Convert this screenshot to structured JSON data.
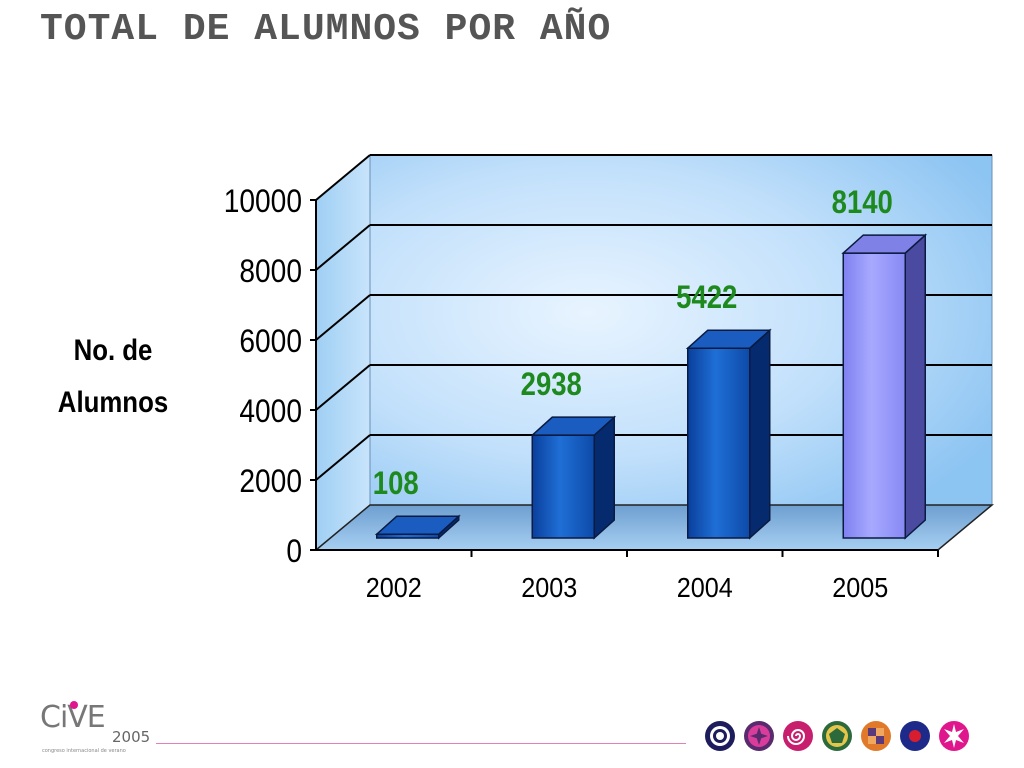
{
  "slide": {
    "title": "TOTAL DE ALUMNOS POR AÑO"
  },
  "chart_data": {
    "type": "bar",
    "title": "",
    "categories": [
      "2002",
      "2003",
      "2004",
      "2005"
    ],
    "values": [
      108,
      2938,
      5422,
      8140
    ],
    "data_labels": [
      "108",
      "2938",
      "5422",
      "8140"
    ],
    "ylabel_lines": [
      "No. de",
      "Alumnos"
    ],
    "xlabel": "",
    "ylim": [
      0,
      10000
    ],
    "yticks": [
      "0",
      "2000",
      "4000",
      "6000",
      "8000",
      "10000"
    ],
    "style": "3d-column",
    "grid": true,
    "legend": "none",
    "colors": {
      "bar_default": "#1560c8",
      "bar_highlight": "#9a9cff",
      "data_label": "#1e8a1e",
      "wall": "#b8dcfa"
    },
    "highlight_category": "2005"
  },
  "footer": {
    "logo": {
      "text": "CiVE",
      "year": "2005",
      "tagline": "congreso internacional de verano"
    },
    "icons": [
      "target-icon",
      "flower-icon",
      "spiral-icon",
      "pentagon-icon",
      "checker-icon",
      "dot-icon",
      "star-icon"
    ]
  }
}
